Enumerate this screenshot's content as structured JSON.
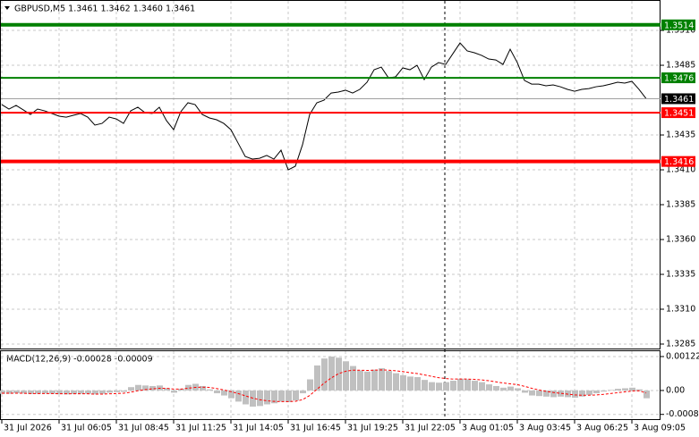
{
  "chart_data": [
    {
      "type": "line",
      "title": "GBPUSD,M5  1.3461 1.3462 1.3460 1.3461",
      "categories": [
        "31 Jul 2026",
        null,
        null,
        null,
        null,
        null,
        null,
        null,
        "31 Jul 06:05",
        null,
        null,
        null,
        null,
        null,
        null,
        null,
        "31 Jul 08:45",
        null,
        null,
        null,
        null,
        null,
        null,
        null,
        "31 Jul 11:25",
        null,
        null,
        null,
        null,
        null,
        null,
        null,
        "31 Jul 14:05",
        null,
        null,
        null,
        null,
        null,
        null,
        null,
        "31 Jul 16:45",
        null,
        null,
        null,
        null,
        null,
        null,
        null,
        "31 Jul 19:25",
        null,
        null,
        null,
        null,
        null,
        null,
        null,
        "31 Jul 22:05",
        null,
        null,
        null,
        null,
        null,
        null,
        null,
        "3 Aug 01:05",
        null,
        null,
        null,
        null,
        null,
        null,
        null,
        "3 Aug 03:45",
        null,
        null,
        null,
        null,
        null,
        null,
        null,
        "3 Aug 06:25",
        null,
        null,
        null,
        null,
        null,
        null,
        null,
        "3 Aug 09:05",
        null,
        null
      ],
      "series": [
        {
          "color": "#000000",
          "values": [
            1.34568,
            1.34536,
            1.34562,
            1.3453,
            1.34497,
            1.34536,
            1.34523,
            1.34504,
            1.34485,
            1.34478,
            1.34491,
            1.34504,
            1.34478,
            1.34421,
            1.34433,
            1.34478,
            1.34465,
            1.34433,
            1.34523,
            1.34549,
            1.3451,
            1.34504,
            1.34549,
            1.34453,
            1.34388,
            1.34517,
            1.34581,
            1.34568,
            1.34497,
            1.34472,
            1.34459,
            1.34433,
            1.34388,
            1.34292,
            1.34196,
            1.34177,
            1.34183,
            1.34203,
            1.34177,
            1.34241,
            1.341,
            1.34126,
            1.3428,
            1.34497,
            1.34581,
            1.346,
            1.34651,
            1.34658,
            1.34671,
            1.34651,
            1.34677,
            1.34728,
            1.34818,
            1.34837,
            1.3476,
            1.34767,
            1.34831,
            1.34818,
            1.3485,
            1.34747,
            1.34837,
            1.34869,
            1.34856,
            1.34933,
            1.3501,
            1.34953,
            1.3494,
            1.34921,
            1.34895,
            1.34888,
            1.34856,
            1.34965,
            1.34869,
            1.34741,
            1.34715,
            1.34715,
            1.34703,
            1.34709,
            1.34696,
            1.34677,
            1.34664,
            1.34677,
            1.34683,
            1.34696,
            1.34703,
            1.34715,
            1.34728,
            1.34722,
            1.34735,
            1.34677,
            1.3461
          ]
        }
      ],
      "ylim": [
        1.32818,
        1.3519
      ],
      "yticks": [
        {
          "value": 1.351,
          "label": "1.3510"
        },
        1.3485,
        1.3435,
        {
          "value": 1.341,
          "label": "1.3410"
        },
        1.3385,
        {
          "value": 1.336,
          "label": "1.3360"
        },
        1.3335,
        {
          "value": 1.331,
          "label": "1.3310"
        },
        1.3285
      ],
      "grid": true,
      "levels": [
        {
          "value": 1.3514,
          "color": "#008000",
          "bold": true
        },
        {
          "value": 1.3476,
          "color": "#008000",
          "bold": false
        },
        {
          "value": 1.3451,
          "color": "#ff0000",
          "bold": false
        },
        {
          "value": 1.3416,
          "color": "#ff0000",
          "bold": true
        }
      ]
    },
    {
      "type": "macd",
      "title": "MACD(12,26,9) -0.00028 -0.00009",
      "series": [
        {
          "type": "bar",
          "color": "#c0c0c0",
          "values": [
            -0.00012,
            -0.00012,
            -0.0001,
            -0.00011,
            -0.00013,
            -0.00012,
            -0.00011,
            -0.00012,
            -0.00013,
            -0.00014,
            -0.00013,
            -0.00012,
            -0.00012,
            -0.00014,
            -0.00012,
            -8e-05,
            -6e-05,
            -5e-05,
            0.00012,
            0.0002,
            0.00018,
            0.00016,
            0.00018,
            8e-05,
            -8e-05,
            6e-05,
            0.0002,
            0.00024,
            0.00016,
            4e-05,
            -0.0001,
            -0.00018,
            -0.00028,
            -0.0004,
            -0.0005,
            -0.00058,
            -0.00056,
            -0.0005,
            -0.00046,
            -0.0004,
            -0.00042,
            -0.00036,
            -0.0001,
            0.0004,
            0.0009,
            0.00115,
            0.00122,
            0.00118,
            0.00105,
            0.00088,
            0.00072,
            0.00068,
            0.00075,
            0.0008,
            0.0007,
            0.00062,
            0.00055,
            0.0005,
            0.00048,
            0.00038,
            0.0003,
            0.00028,
            0.0003,
            0.00035,
            0.00042,
            0.0004,
            0.00035,
            0.0003,
            0.00022,
            0.00016,
            0.0001,
            0.00014,
            8e-05,
            -8e-05,
            -0.00018,
            -0.0002,
            -0.00022,
            -0.00024,
            -0.00022,
            -0.00024,
            -0.00026,
            -0.00022,
            -0.00016,
            -0.0001,
            -4e-05,
            2e-05,
            6e-05,
            8e-05,
            0.0001,
            4e-05,
            -0.00028
          ]
        },
        {
          "type": "line",
          "color": "#ff0000",
          "dashed": true,
          "values": [
            -0.0001,
            -0.0001,
            -0.0001,
            -0.0001,
            -0.00011,
            -0.00011,
            -0.00011,
            -0.00011,
            -0.00012,
            -0.00012,
            -0.00012,
            -0.00012,
            -0.00012,
            -0.00013,
            -0.00013,
            -0.00012,
            -0.00011,
            -0.0001,
            -6e-05,
            -1e-05,
            3e-05,
            6e-05,
            8e-05,
            8e-05,
            5e-05,
            5e-05,
            8e-05,
            0.00011,
            0.00012,
            0.00011,
            7e-05,
            2e-05,
            -4e-05,
            -0.00011,
            -0.00019,
            -0.00027,
            -0.00033,
            -0.00037,
            -0.00039,
            -0.0004,
            -0.0004,
            -0.00039,
            -0.00033,
            -0.00018,
            4e-05,
            0.00026,
            0.00045,
            0.0006,
            0.00069,
            0.00073,
            0.00073,
            0.00072,
            0.00073,
            0.00074,
            0.00073,
            0.00071,
            0.00068,
            0.00064,
            0.00061,
            0.00056,
            0.00051,
            0.00046,
            0.00043,
            0.00041,
            0.00041,
            0.00041,
            0.0004,
            0.00038,
            0.00035,
            0.00031,
            0.00027,
            0.00024,
            0.00021,
            0.00015,
            8e-05,
            2e-05,
            -3e-05,
            -7e-05,
            -0.0001,
            -0.00013,
            -0.00016,
            -0.00017,
            -0.00017,
            -0.00016,
            -0.00014,
            -0.00011,
            -8e-05,
            -5e-05,
            -2e-05,
            -1e-05,
            -9e-05
          ]
        }
      ],
      "ylim": [
        -0.00103,
        0.00138
      ],
      "yticks": [
        0.00122,
        {
          "value": 0,
          "label": "0.00"
        },
        -0.00086
      ],
      "grid": true
    }
  ]
}
